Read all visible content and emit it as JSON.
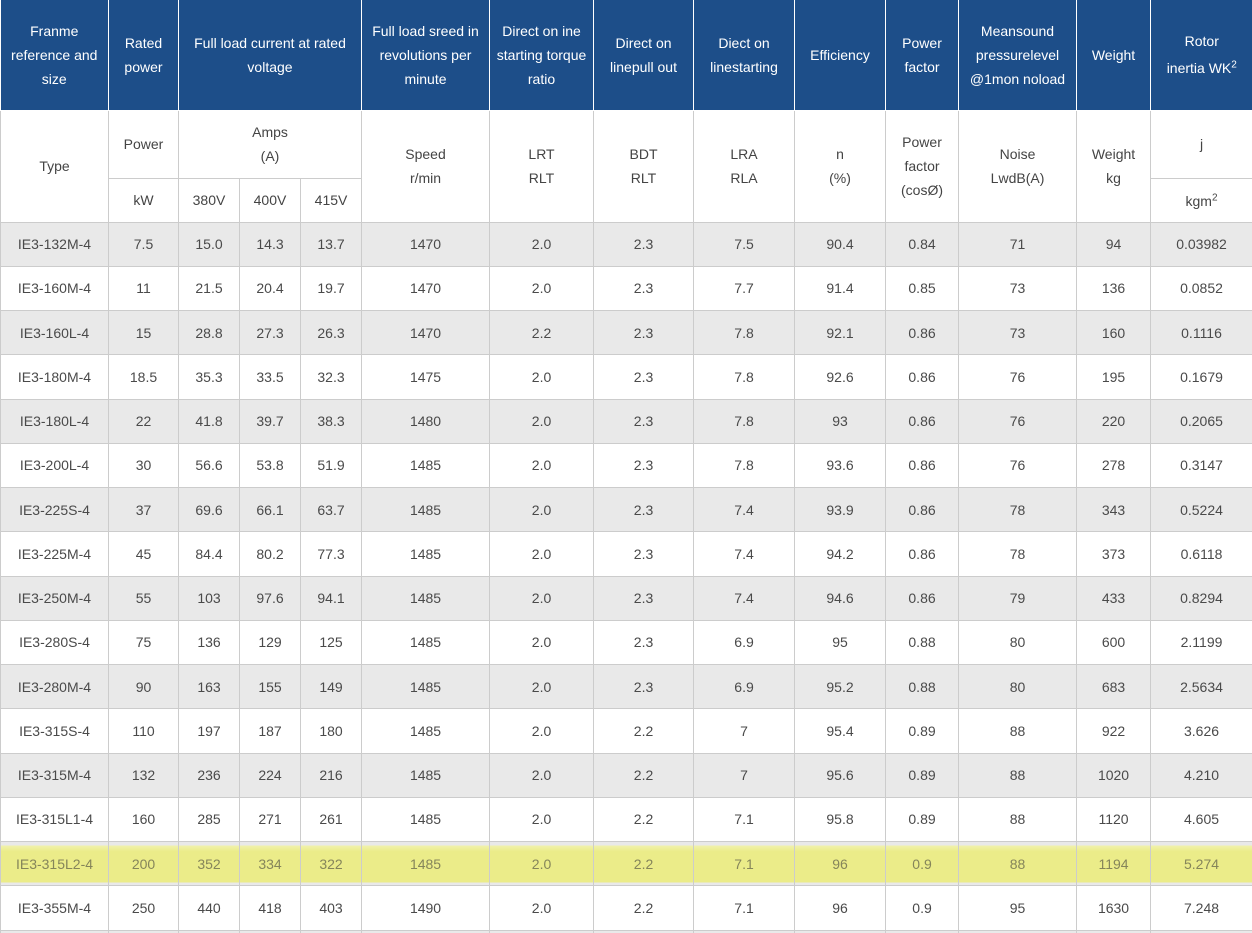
{
  "table": {
    "header": {
      "frame": "Franme reference and size",
      "rated_power": "Rated power",
      "full_load_current": "Full load current at rated voltage",
      "full_load_speed": "Full load sreed in revolutions per minute",
      "starting_torque": "Direct on ine starting torque ratio",
      "pull_out": "Direct on linepull out",
      "line_starting": "Diect on linestarting",
      "efficiency": "Efficiency",
      "power_factor": "Power factor",
      "sound_pressure": "Meansound pressurelevel @1mon noload",
      "weight": "Weight",
      "rotor_line1": "Rotor",
      "rotor_line2": "inertia WK",
      "rotor_sup": "2"
    },
    "subheader": {
      "type": "Type",
      "power": "Power",
      "kw": "kW",
      "amps1": "Amps",
      "amps2": "(A)",
      "v380": "380V",
      "v400": "400V",
      "v415": "415V",
      "speed1": "Speed",
      "speed2": "r/min",
      "lrt1": "LRT",
      "lrt2": "RLT",
      "bdt1": "BDT",
      "bdt2": "RLT",
      "lra1": "LRA",
      "lra2": "RLA",
      "n1": "n",
      "n2": "(%)",
      "pf1": "Power",
      "pf2": "factor",
      "pf3": "(cosØ)",
      "noise1": "Noise",
      "noise2": "LwdB(A)",
      "wt1": "Weight",
      "wt2": "kg",
      "j": "j",
      "kgm": "kgm",
      "kgm_sup": "2"
    }
  },
  "chart_data": {
    "type": "table",
    "column_keys": [
      "type",
      "kw",
      "a380",
      "a400",
      "a415",
      "speed",
      "lrt",
      "bdt",
      "lra",
      "eff",
      "pf",
      "noise",
      "weight",
      "j"
    ],
    "column_labels": [
      "Type",
      "Power kW",
      "Amps 380V",
      "Amps 400V",
      "Amps 415V",
      "Speed r/min",
      "LRT RLT",
      "BDT RLT",
      "LRA RLA",
      "n (%)",
      "Power factor (cosØ)",
      "Noise LwdB(A)",
      "Weight kg",
      "j kgm2"
    ],
    "highlighted_row_index": 14,
    "highlighted_row_type": "IE3-315L2-4",
    "rows": [
      [
        "IE3-132M-4",
        "7.5",
        "15.0",
        "14.3",
        "13.7",
        "1470",
        "2.0",
        "2.3",
        "7.5",
        "90.4",
        "0.84",
        "71",
        "94",
        "0.03982"
      ],
      [
        "IE3-160M-4",
        "11",
        "21.5",
        "20.4",
        "19.7",
        "1470",
        "2.0",
        "2.3",
        "7.7",
        "91.4",
        "0.85",
        "73",
        "136",
        "0.0852"
      ],
      [
        "IE3-160L-4",
        "15",
        "28.8",
        "27.3",
        "26.3",
        "1470",
        "2.2",
        "2.3",
        "7.8",
        "92.1",
        "0.86",
        "73",
        "160",
        "0.1116"
      ],
      [
        "IE3-180M-4",
        "18.5",
        "35.3",
        "33.5",
        "32.3",
        "1475",
        "2.0",
        "2.3",
        "7.8",
        "92.6",
        "0.86",
        "76",
        "195",
        "0.1679"
      ],
      [
        "IE3-180L-4",
        "22",
        "41.8",
        "39.7",
        "38.3",
        "1480",
        "2.0",
        "2.3",
        "7.8",
        "93",
        "0.86",
        "76",
        "220",
        "0.2065"
      ],
      [
        "IE3-200L-4",
        "30",
        "56.6",
        "53.8",
        "51.9",
        "1485",
        "2.0",
        "2.3",
        "7.8",
        "93.6",
        "0.86",
        "76",
        "278",
        "0.3147"
      ],
      [
        "IE3-225S-4",
        "37",
        "69.6",
        "66.1",
        "63.7",
        "1485",
        "2.0",
        "2.3",
        "7.4",
        "93.9",
        "0.86",
        "78",
        "343",
        "0.5224"
      ],
      [
        "IE3-225M-4",
        "45",
        "84.4",
        "80.2",
        "77.3",
        "1485",
        "2.0",
        "2.3",
        "7.4",
        "94.2",
        "0.86",
        "78",
        "373",
        "0.6118"
      ],
      [
        "IE3-250M-4",
        "55",
        "103",
        "97.6",
        "94.1",
        "1485",
        "2.0",
        "2.3",
        "7.4",
        "94.6",
        "0.86",
        "79",
        "433",
        "0.8294"
      ],
      [
        "IE3-280S-4",
        "75",
        "136",
        "129",
        "125",
        "1485",
        "2.0",
        "2.3",
        "6.9",
        "95",
        "0.88",
        "80",
        "600",
        "2.1199"
      ],
      [
        "IE3-280M-4",
        "90",
        "163",
        "155",
        "149",
        "1485",
        "2.0",
        "2.3",
        "6.9",
        "95.2",
        "0.88",
        "80",
        "683",
        "2.5634"
      ],
      [
        "IE3-315S-4",
        "110",
        "197",
        "187",
        "180",
        "1485",
        "2.0",
        "2.2",
        "7",
        "95.4",
        "0.89",
        "88",
        "922",
        "3.626"
      ],
      [
        "IE3-315M-4",
        "132",
        "236",
        "224",
        "216",
        "1485",
        "2.0",
        "2.2",
        "7",
        "95.6",
        "0.89",
        "88",
        "1020",
        "4.210"
      ],
      [
        "IE3-315L1-4",
        "160",
        "285",
        "271",
        "261",
        "1485",
        "2.0",
        "2.2",
        "7.1",
        "95.8",
        "0.89",
        "88",
        "1120",
        "4.605"
      ],
      [
        "IE3-315L2-4",
        "200",
        "352",
        "334",
        "322",
        "1485",
        "2.0",
        "2.2",
        "7.1",
        "96",
        "0.9",
        "88",
        "1194",
        "5.274"
      ],
      [
        "IE3-355M-4",
        "250",
        "440",
        "418",
        "403",
        "1490",
        "2.0",
        "2.2",
        "7.1",
        "96",
        "0.9",
        "95",
        "1630",
        "7.248"
      ]
    ]
  },
  "colors": {
    "header_bg": "#1d4e89",
    "header_text": "#ffffff",
    "subheader_gray": "#e4e4e4",
    "row_alt_gray": "#e9e9e9",
    "row_white": "#ffffff",
    "highlight_yellow": "#ebec89",
    "highlight_text": "#85855a",
    "body_text": "#4a4a4a",
    "border": "#cccccc"
  }
}
